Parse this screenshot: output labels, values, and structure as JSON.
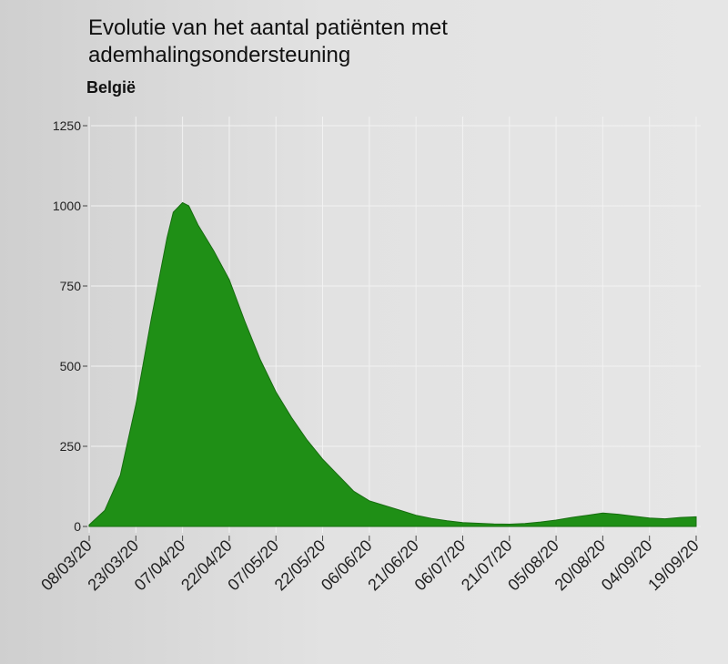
{
  "chart_data": {
    "type": "area",
    "title": "Evolutie van het aantal patiënten met ademhalingsondersteuning",
    "subtitle": "België",
    "xlabel": "",
    "ylabel": "",
    "ylim": [
      0,
      1250
    ],
    "y_ticks": [
      0,
      250,
      500,
      750,
      1000,
      1250
    ],
    "y_tick_labels": [
      "0",
      "250",
      "500",
      "750",
      "1000",
      "1250"
    ],
    "x_tick_labels": [
      "08/03/20",
      "23/03/20",
      "07/04/20",
      "22/04/20",
      "07/05/20",
      "22/05/20",
      "06/06/20",
      "21/06/20",
      "06/07/20",
      "21/07/20",
      "05/08/20",
      "20/08/20",
      "04/09/20",
      "19/09/20"
    ],
    "grid": true,
    "color": "#1f8f16",
    "x": [
      "08/03/20",
      "13/03/20",
      "18/03/20",
      "23/03/20",
      "28/03/20",
      "02/04/20",
      "04/04/20",
      "07/04/20",
      "09/04/20",
      "12/04/20",
      "17/04/20",
      "22/04/20",
      "27/04/20",
      "02/05/20",
      "07/05/20",
      "12/05/20",
      "17/05/20",
      "22/05/20",
      "27/05/20",
      "01/06/20",
      "06/06/20",
      "11/06/20",
      "16/06/20",
      "21/06/20",
      "26/06/20",
      "01/07/20",
      "06/07/20",
      "11/07/20",
      "16/07/20",
      "21/07/20",
      "26/07/20",
      "31/07/20",
      "05/08/20",
      "10/08/20",
      "15/08/20",
      "20/08/20",
      "25/08/20",
      "30/08/20",
      "04/09/20",
      "09/09/20",
      "14/09/20",
      "19/09/20"
    ],
    "values": [
      5,
      50,
      160,
      380,
      650,
      900,
      980,
      1010,
      1000,
      940,
      860,
      770,
      640,
      520,
      420,
      340,
      270,
      210,
      160,
      110,
      80,
      65,
      50,
      35,
      25,
      18,
      12,
      10,
      8,
      7,
      9,
      14,
      20,
      28,
      35,
      42,
      38,
      32,
      26,
      24,
      28,
      30
    ]
  }
}
